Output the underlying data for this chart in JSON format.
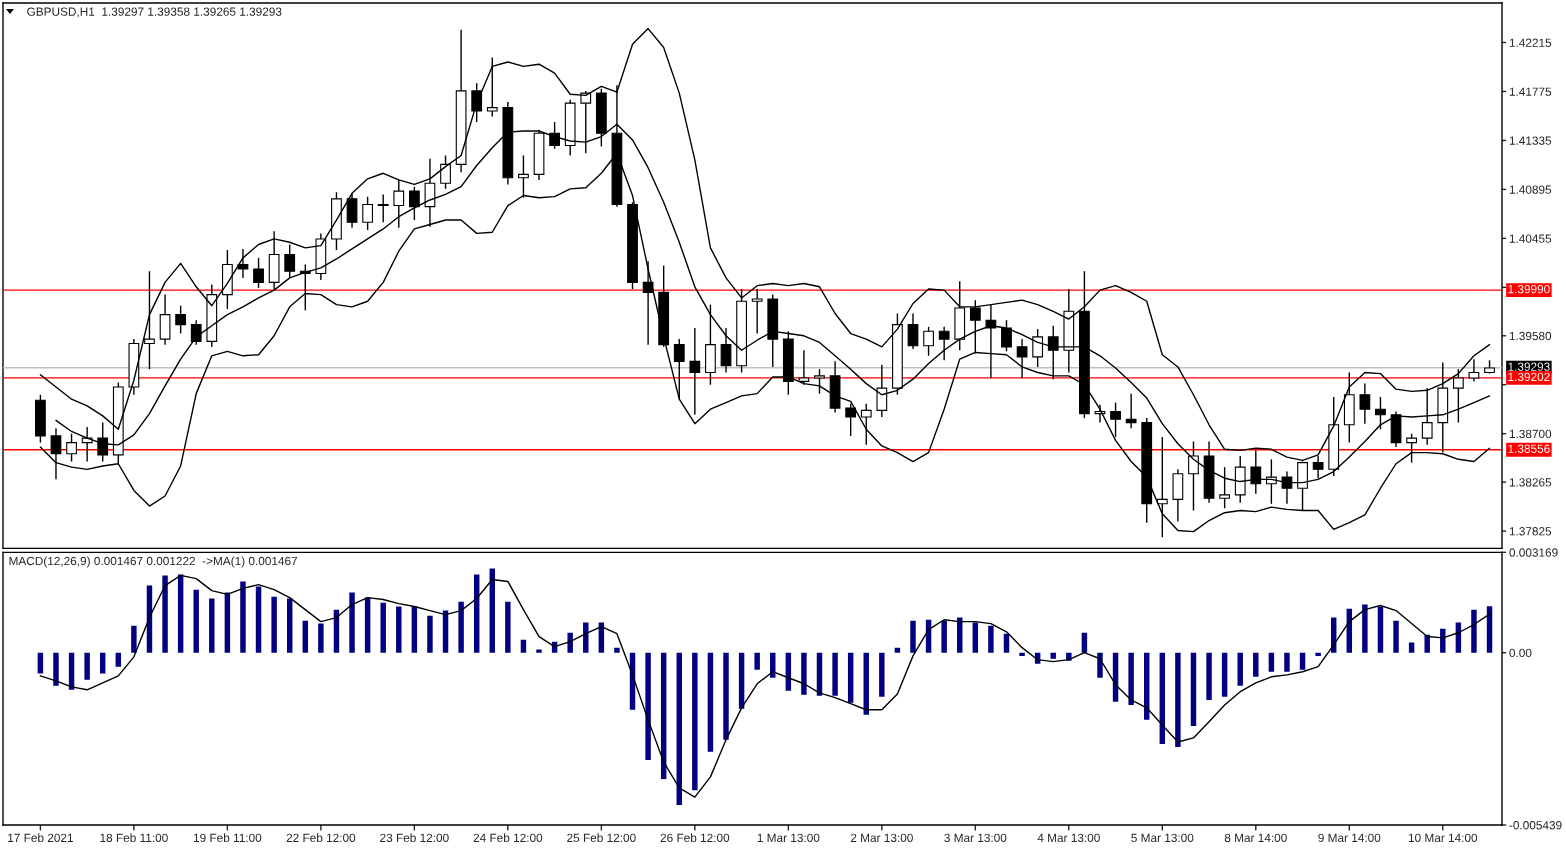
{
  "chart_data": [
    {
      "type": "candlestick",
      "title": "GBPUSD,H1  1.39297 1.39358 1.39265 1.39293",
      "tick_labels": "y",
      "color": "#000000",
      "ohlc": [
        [
          1.39,
          1.3905,
          1.3862,
          1.3868
        ],
        [
          1.3868,
          1.3875,
          1.3829,
          1.3852
        ],
        [
          1.3852,
          1.387,
          1.3845,
          1.3862
        ],
        [
          1.3862,
          1.3876,
          1.3845,
          1.3866
        ],
        [
          1.3866,
          1.388,
          1.3845,
          1.3851
        ],
        [
          1.3851,
          1.3916,
          1.3843,
          1.3912
        ],
        [
          1.3912,
          1.3955,
          1.3905,
          1.3951
        ],
        [
          1.3951,
          1.4016,
          1.3928,
          1.3955
        ],
        [
          1.3955,
          1.3995,
          1.395,
          1.3977
        ],
        [
          1.3977,
          1.3985,
          1.396,
          1.3968
        ],
        [
          1.3968,
          1.3972,
          1.395,
          1.3953
        ],
        [
          1.3953,
          1.4004,
          1.3948,
          1.3995
        ],
        [
          1.3995,
          1.4035,
          1.3982,
          1.4022
        ],
        [
          1.4022,
          1.4036,
          1.401,
          1.4018
        ],
        [
          1.4018,
          1.4028,
          1.4001,
          1.4006
        ],
        [
          1.4006,
          1.4052,
          1.4,
          1.4031
        ],
        [
          1.4031,
          1.404,
          1.401,
          1.4016
        ],
        [
          1.4016,
          1.4022,
          1.3981,
          1.4014
        ],
        [
          1.4014,
          1.405,
          1.4008,
          1.4045
        ],
        [
          1.4045,
          1.4087,
          1.4035,
          1.4081
        ],
        [
          1.4081,
          1.4086,
          1.4055,
          1.406
        ],
        [
          1.406,
          1.4083,
          1.4053,
          1.4076
        ],
        [
          1.4076,
          1.4085,
          1.406,
          1.4075
        ],
        [
          1.4075,
          1.4098,
          1.4055,
          1.4088
        ],
        [
          1.4088,
          1.4092,
          1.4062,
          1.4074
        ],
        [
          1.4074,
          1.4117,
          1.4056,
          1.4095
        ],
        [
          1.4095,
          1.412,
          1.409,
          1.4112
        ],
        [
          1.4112,
          1.4233,
          1.4105,
          1.4178
        ],
        [
          1.4178,
          1.4185,
          1.415,
          1.416
        ],
        [
          1.416,
          1.4208,
          1.4155,
          1.4163
        ],
        [
          1.4163,
          1.4168,
          1.4094,
          1.41
        ],
        [
          1.41,
          1.412,
          1.4082,
          1.4103
        ],
        [
          1.4103,
          1.4143,
          1.4098,
          1.414
        ],
        [
          1.414,
          1.415,
          1.4126,
          1.4129
        ],
        [
          1.4129,
          1.417,
          1.412,
          1.4167
        ],
        [
          1.4167,
          1.4178,
          1.4122,
          1.4176
        ],
        [
          1.4176,
          1.418,
          1.4128,
          1.414
        ],
        [
          1.414,
          1.4183,
          1.4074,
          1.4076
        ],
        [
          1.4076,
          1.4078,
          1.4,
          1.4006
        ],
        [
          1.4006,
          1.4025,
          1.395,
          1.3997
        ],
        [
          1.3997,
          1.4021,
          1.3948,
          1.395
        ],
        [
          1.395,
          1.3955,
          1.3901,
          1.3935
        ],
        [
          1.3935,
          1.3965,
          1.3887,
          1.3925
        ],
        [
          1.3925,
          1.3986,
          1.3914,
          1.395
        ],
        [
          1.395,
          1.3965,
          1.3925,
          1.3931
        ],
        [
          1.3931,
          1.4,
          1.3925,
          1.3989
        ],
        [
          1.3989,
          1.4,
          1.396,
          1.3991
        ],
        [
          1.3991,
          1.3995,
          1.393,
          1.3955
        ],
        [
          1.3955,
          1.3962,
          1.3905,
          1.3917
        ],
        [
          1.3917,
          1.3945,
          1.3914,
          1.392
        ],
        [
          1.392,
          1.3928,
          1.3906,
          1.3922
        ],
        [
          1.3922,
          1.3935,
          1.3889,
          1.3893
        ],
        [
          1.3893,
          1.3897,
          1.3868,
          1.3885
        ],
        [
          1.3885,
          1.3897,
          1.386,
          1.3891
        ],
        [
          1.3891,
          1.3932,
          1.3885,
          1.3911
        ],
        [
          1.3911,
          1.3978,
          1.3905,
          1.3968
        ],
        [
          1.3968,
          1.3978,
          1.3946,
          1.3949
        ],
        [
          1.3949,
          1.3966,
          1.394,
          1.3962
        ],
        [
          1.3962,
          1.3966,
          1.3936,
          1.3955
        ],
        [
          1.3955,
          1.4007,
          1.3945,
          1.3983
        ],
        [
          1.3983,
          1.399,
          1.3942,
          1.3972
        ],
        [
          1.3972,
          1.3986,
          1.392,
          1.3965
        ],
        [
          1.3965,
          1.3972,
          1.3944,
          1.3948
        ],
        [
          1.3948,
          1.3955,
          1.392,
          1.3939
        ],
        [
          1.3939,
          1.3964,
          1.393,
          1.3957
        ],
        [
          1.3957,
          1.3967,
          1.3919,
          1.3945
        ],
        [
          1.3945,
          1.4,
          1.3925,
          1.398
        ],
        [
          1.398,
          1.4016,
          1.3884,
          1.3888
        ],
        [
          1.3888,
          1.3896,
          1.388,
          1.389
        ],
        [
          1.389,
          1.3898,
          1.3867,
          1.3883
        ],
        [
          1.3883,
          1.3906,
          1.3875,
          1.388
        ],
        [
          1.388,
          1.3884,
          1.379,
          1.3807
        ],
        [
          1.3807,
          1.3867,
          1.3777,
          1.3811
        ],
        [
          1.3811,
          1.3838,
          1.3791,
          1.3834
        ],
        [
          1.3834,
          1.3863,
          1.3801,
          1.385
        ],
        [
          1.385,
          1.3863,
          1.3808,
          1.3812
        ],
        [
          1.3812,
          1.384,
          1.3803,
          1.3815
        ],
        [
          1.3815,
          1.385,
          1.3808,
          1.384
        ],
        [
          1.384,
          1.3855,
          1.3816,
          1.3825
        ],
        [
          1.3825,
          1.3847,
          1.3807,
          1.3831
        ],
        [
          1.3831,
          1.3836,
          1.3807,
          1.3821
        ],
        [
          1.3821,
          1.3845,
          1.3801,
          1.3844
        ],
        [
          1.3844,
          1.385,
          1.383,
          1.3838
        ],
        [
          1.3838,
          1.3903,
          1.3832,
          1.3878
        ],
        [
          1.3878,
          1.3925,
          1.3862,
          1.3905
        ],
        [
          1.3905,
          1.3915,
          1.3879,
          1.3892
        ],
        [
          1.3892,
          1.3903,
          1.3874,
          1.3887
        ],
        [
          1.3887,
          1.389,
          1.3858,
          1.3862
        ],
        [
          1.3862,
          1.387,
          1.3844,
          1.3866
        ],
        [
          1.3866,
          1.3911,
          1.386,
          1.388
        ],
        [
          1.388,
          1.3934,
          1.3853,
          1.3911
        ],
        [
          1.3911,
          1.3928,
          1.388,
          1.392
        ],
        [
          1.392,
          1.3937,
          1.3917,
          1.3925
        ],
        [
          1.3925,
          1.3936,
          1.3924,
          1.3929
        ]
      ],
      "series": [
        {
          "type": "line",
          "color": "#000000",
          "values": [
            1.3923,
            1.3912,
            1.3901,
            1.3895,
            1.3886,
            1.3874,
            1.3918,
            1.3977,
            1.4006,
            1.4023,
            1.4002,
            1.3985,
            1.4005,
            1.4028,
            1.404,
            1.4045,
            1.4042,
            1.4037,
            1.4039,
            1.4062,
            1.4086,
            1.4099,
            1.4104,
            1.4098,
            1.4094,
            1.4099,
            1.411,
            1.412,
            1.4167,
            1.42,
            1.4204,
            1.42,
            1.4202,
            1.4194,
            1.4175,
            1.4174,
            1.4182,
            1.4177,
            1.422,
            1.4234,
            1.4217,
            1.4176,
            1.4116,
            1.4037,
            1.401,
            1.3992,
            1.4003,
            1.4005,
            1.4003,
            1.4005,
            1.4002,
            1.3978,
            1.396,
            1.3955,
            1.3948,
            1.3964,
            1.3987,
            1.4,
            1.3999,
            1.3984,
            1.3984,
            1.3986,
            1.3988,
            1.399,
            1.3986,
            1.398,
            1.3973,
            1.3984,
            1.3999,
            1.4003,
            1.3997,
            1.3989,
            1.3941,
            1.393,
            1.3905,
            1.3878,
            1.3856,
            1.3855,
            1.3857,
            1.3856,
            1.3849,
            1.3846,
            1.3851,
            1.3877,
            1.3912,
            1.3925,
            1.3924,
            1.391,
            1.3908,
            1.3909,
            1.3915,
            1.3924,
            1.394,
            1.395
          ]
        },
        {
          "type": "line",
          "color": "#000000",
          "values": [
            null,
            1.3882,
            1.3872,
            1.3866,
            1.3861,
            1.386,
            1.3869,
            1.3888,
            1.3913,
            1.3937,
            1.3957,
            1.3967,
            1.3977,
            1.3984,
            1.3992,
            1.3999,
            1.401,
            1.4015,
            1.4019,
            1.4027,
            1.4036,
            1.4045,
            1.4054,
            1.4065,
            1.4073,
            1.408,
            1.4085,
            1.4092,
            1.4111,
            1.4127,
            1.4141,
            1.4142,
            1.4142,
            1.4137,
            1.4133,
            1.4132,
            1.4137,
            1.4148,
            1.4134,
            1.4109,
            1.4078,
            1.4042,
            1.4002,
            1.3977,
            1.3958,
            1.3945,
            1.3954,
            1.3962,
            1.396,
            1.3958,
            1.3952,
            1.394,
            1.3928,
            1.3915,
            1.3905,
            1.3909,
            1.3919,
            1.3933,
            1.3945,
            1.3955,
            1.3962,
            1.3967,
            1.3965,
            1.3959,
            1.3952,
            1.3948,
            1.3948,
            1.3948,
            1.394,
            1.3929,
            1.3916,
            1.3902,
            1.3879,
            1.3861,
            1.3847,
            1.3837,
            1.383,
            1.3827,
            1.3829,
            1.3829,
            1.3826,
            1.3826,
            1.3829,
            1.3836,
            1.3849,
            1.3863,
            1.3878,
            1.3886,
            1.3885,
            1.3886,
            1.3887,
            1.3892,
            1.3898,
            1.3904
          ]
        },
        {
          "type": "line",
          "color": "#000000",
          "values": [
            1.3858,
            1.3844,
            1.384,
            1.3838,
            1.3841,
            1.3843,
            1.3819,
            1.3805,
            1.3814,
            1.3841,
            1.3906,
            1.394,
            1.3944,
            1.394,
            1.3941,
            1.3958,
            1.3984,
            1.3996,
            1.3995,
            1.3986,
            1.3984,
            1.3989,
            1.4006,
            1.4034,
            1.4054,
            1.4058,
            1.4062,
            1.4062,
            1.405,
            1.4051,
            1.4075,
            1.4084,
            1.4082,
            1.4083,
            1.409,
            1.4091,
            1.4104,
            1.4122,
            1.4084,
            1.4018,
            1.3957,
            1.3901,
            1.3879,
            1.3892,
            1.3898,
            1.3904,
            1.3906,
            1.3921,
            1.3921,
            1.3915,
            1.3913,
            1.3904,
            1.3899,
            1.3874,
            1.3859,
            1.3853,
            1.3845,
            1.3853,
            1.3892,
            1.3937,
            1.3943,
            1.3942,
            1.3941,
            1.393,
            1.3925,
            1.3922,
            1.3922,
            1.3914,
            1.3892,
            1.3864,
            1.3845,
            1.3831,
            1.3798,
            1.3783,
            1.3782,
            1.3792,
            1.3799,
            1.3801,
            1.38,
            1.3804,
            1.3802,
            1.3801,
            1.3801,
            1.3784,
            1.379,
            1.3797,
            1.3821,
            1.3843,
            1.3853,
            1.3853,
            1.3852,
            1.3847,
            1.3845,
            1.3857
          ]
        }
      ],
      "ref_lines": [
        {
          "axis": "y",
          "value": 1.3999,
          "label": "1.39990",
          "color": "#ff0000"
        },
        {
          "axis": "y",
          "value": 1.39293,
          "label": "1.39293",
          "color": "#c0c0c0"
        },
        {
          "axis": "y",
          "value": 1.39202,
          "label": "1.39202",
          "color": "#ff0000"
        },
        {
          "axis": "y",
          "value": 1.38556,
          "label": "1.38556",
          "color": "#ff0000"
        }
      ],
      "ylim": [
        1.3767,
        1.4257
      ],
      "yticks": [
        1.37825,
        1.38265,
        {
          "value": 1.387,
          "label": "1.38700"
        },
        {
          "value": 1.3914,
          "label": null
        },
        {
          "value": 1.3958,
          "label": "1.39580"
        },
        {
          "value": 1.40015,
          "label": null
        },
        1.40455,
        1.40895,
        1.41335,
        1.41775,
        1.42215
      ]
    },
    {
      "type": "bar",
      "title": "MACD(12,26,9) 0.001467 0.001222  ->MA(1) 0.001467",
      "categories": [
        "17 Feb 2021",
        null,
        null,
        null,
        null,
        null,
        "18 Feb 11:00",
        null,
        null,
        null,
        null,
        null,
        "19 Feb 11:00",
        null,
        null,
        null,
        null,
        null,
        "22 Feb 12:00",
        null,
        null,
        null,
        null,
        null,
        "23 Feb 12:00",
        null,
        null,
        null,
        null,
        null,
        "24 Feb 12:00",
        null,
        null,
        null,
        null,
        null,
        "25 Feb 12:00",
        null,
        null,
        null,
        null,
        null,
        "26 Feb 12:00",
        null,
        null,
        null,
        null,
        null,
        "1 Mar 13:00",
        null,
        null,
        null,
        null,
        null,
        "2 Mar 13:00",
        null,
        null,
        null,
        null,
        null,
        "3 Mar 13:00",
        null,
        null,
        null,
        null,
        null,
        "4 Mar 13:00",
        null,
        null,
        null,
        null,
        null,
        "5 Mar 13:00",
        null,
        null,
        null,
        null,
        null,
        "8 Mar 14:00",
        null,
        null,
        null,
        null,
        null,
        "9 Mar 14:00",
        null,
        null,
        null,
        null,
        null,
        "10 Mar 14:00",
        null,
        null,
        null
      ],
      "series": [
        {
          "color": "#000080",
          "values": [
            -0.00066,
            -0.00104,
            -0.00117,
            -0.00085,
            -0.00066,
            -0.00044,
            0.00085,
            0.00212,
            0.00244,
            0.00247,
            0.00199,
            0.00171,
            0.0019,
            0.00225,
            0.00209,
            0.00177,
            0.00171,
            0.00101,
            0.00092,
            0.00136,
            0.0019,
            0.00174,
            0.00158,
            0.00146,
            0.00146,
            0.00117,
            0.00133,
            0.00161,
            0.00247,
            0.00266,
            0.00161,
            0.00041,
            0.0001,
            0.00035,
            0.00063,
            0.00095,
            0.00095,
            0.00016,
            -0.0018,
            -0.00339,
            -0.00399,
            -0.00481,
            -0.00434,
            -0.00313,
            -0.00275,
            -0.00177,
            -0.00054,
            -0.00079,
            -0.0012,
            -0.00133,
            -0.00136,
            -0.00136,
            -0.00158,
            -0.00196,
            -0.00139,
            0.00016,
            0.00101,
            0.00104,
            0.00101,
            0.00111,
            0.00095,
            0.00085,
            0.0006,
            -0.0001,
            -0.00035,
            -0.00019,
            -0.00025,
            0.00063,
            -0.00079,
            -0.00155,
            -0.00165,
            -0.00212,
            -0.00288,
            -0.00298,
            -0.00231,
            -0.00149,
            -0.00139,
            -0.00104,
            -0.00076,
            -0.0006,
            -0.0006,
            -0.00054,
            -0.0001,
            0.00111,
            0.00139,
            0.00152,
            0.00146,
            0.00101,
            0.00032,
            0.00057,
            0.00076,
            0.00095,
            0.00136,
            0.00147
          ]
        },
        {
          "type": "line",
          "color": "#000000",
          "values": [
            -0.00073,
            -0.00089,
            -0.00108,
            -0.00117,
            -0.00095,
            -0.00073,
            -0.00013,
            0.00111,
            0.00212,
            0.00244,
            0.00234,
            0.00196,
            0.00184,
            0.00203,
            0.00215,
            0.00199,
            0.00174,
            0.00136,
            0.00098,
            0.00111,
            0.00152,
            0.00174,
            0.00168,
            0.00155,
            0.00146,
            0.00133,
            0.0012,
            0.00133,
            0.00171,
            0.00231,
            0.00225,
            0.00136,
            0.00051,
            0.00019,
            0.00035,
            0.0006,
            0.00082,
            0.0006,
            -0.0007,
            -0.00212,
            -0.00345,
            -0.00427,
            -0.00456,
            -0.00392,
            -0.00275,
            -0.00174,
            -0.00098,
            -0.0006,
            -0.00079,
            -0.00098,
            -0.00127,
            -0.00142,
            -0.00161,
            -0.0018,
            -0.0018,
            -0.0013,
            -0.0001,
            0.00073,
            0.00104,
            0.00098,
            0.00098,
            0.00092,
            0.00066,
            0.00016,
            -0.00022,
            -0.00028,
            -0.00022,
            0,
            -0.00019,
            -0.00101,
            -0.00149,
            -0.00174,
            -0.00228,
            -0.00282,
            -0.00269,
            -0.00218,
            -0.00165,
            -0.00123,
            -0.00095,
            -0.00076,
            -0.0007,
            -0.0006,
            -0.00044,
            0.00025,
            0.00098,
            0.00136,
            0.00149,
            0.00133,
            0.00092,
            0.00051,
            0.00047,
            0.00063,
            0.00089,
            0.00122
          ]
        }
      ],
      "ylim": [
        -0.005439,
        0.003169
      ],
      "yticks": [
        0.003169,
        {
          "value": 0,
          "label": "0.00"
        },
        -0.005439
      ]
    }
  ]
}
